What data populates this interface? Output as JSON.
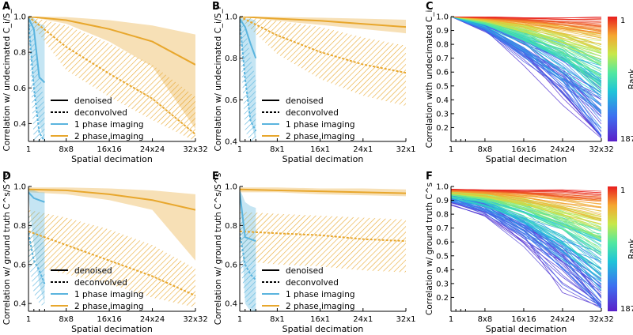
{
  "colors": {
    "blue": "#5ab4de",
    "orange": "#e8a72d"
  },
  "chart_data": [
    {
      "panel": "A",
      "type": "line",
      "ylabel": "Correlation w/ undecimated C_i/S_i",
      "xlabel": "Spatial decimation",
      "xticks": [
        "1",
        "8x8",
        "16x16",
        "24x24",
        "32x32"
      ],
      "yticks": [
        "0.4",
        "0.6",
        "0.8",
        "1.0"
      ],
      "ylim": [
        0.3,
        1.0
      ],
      "legend": [
        "denoised",
        "deconvolved",
        "1 phase imaging",
        "2 phase imaging"
      ],
      "series": [
        {
          "name": "2 phase denoised",
          "x": [
            1,
            8,
            16,
            24,
            32
          ],
          "y": [
            1.0,
            0.98,
            0.93,
            0.86,
            0.73
          ],
          "lo": [
            1.0,
            0.96,
            0.86,
            0.72,
            0.37
          ],
          "hi": [
            1.0,
            0.997,
            0.98,
            0.95,
            0.9
          ]
        },
        {
          "name": "2 phase deconvolved",
          "x": [
            1,
            8,
            16,
            24,
            32
          ],
          "y": [
            1.0,
            0.83,
            0.68,
            0.54,
            0.34
          ],
          "lo": [
            0.98,
            0.7,
            0.55,
            0.42,
            0.3
          ],
          "hi": [
            1.0,
            0.95,
            0.85,
            0.73,
            0.55
          ]
        },
        {
          "name": "1 phase denoised",
          "x": [
            1,
            2,
            3,
            4
          ],
          "y": [
            0.99,
            0.93,
            0.66,
            0.63
          ],
          "lo": [
            0.98,
            0.6,
            0.4,
            0.3
          ],
          "hi": [
            1.0,
            0.99,
            0.96,
            0.95
          ]
        },
        {
          "name": "1 phase deconvolved",
          "x": [
            1,
            2,
            3,
            4
          ],
          "y": [
            0.98,
            0.6,
            0.35,
            0.3
          ],
          "lo": [
            0.9,
            0.3,
            0.3,
            0.3
          ],
          "hi": [
            1.0,
            0.95,
            0.7,
            0.5
          ]
        }
      ]
    },
    {
      "panel": "B",
      "type": "line",
      "ylabel": "Correlation w/ undecimated C_i/S_i",
      "xlabel": "Spatial decimation",
      "xticks": [
        "1",
        "8x1",
        "16x1",
        "24x1",
        "32x1"
      ],
      "yticks": [
        "0.4",
        "0.6",
        "0.8",
        "1.0"
      ],
      "ylim": [
        0.4,
        1.0
      ],
      "legend": [
        "denoised",
        "deconvolved",
        "1 phase imaging",
        "2 phase imaging"
      ],
      "series": [
        {
          "name": "2 phase denoised",
          "x": [
            1,
            8,
            16,
            24,
            32
          ],
          "y": [
            1.0,
            0.99,
            0.98,
            0.965,
            0.95
          ],
          "lo": [
            1.0,
            0.98,
            0.96,
            0.94,
            0.92
          ],
          "hi": [
            1.0,
            0.998,
            0.995,
            0.99,
            0.985
          ]
        },
        {
          "name": "2 phase deconvolved",
          "x": [
            1,
            8,
            16,
            24,
            32
          ],
          "y": [
            1.0,
            0.91,
            0.83,
            0.77,
            0.73
          ],
          "lo": [
            0.99,
            0.82,
            0.7,
            0.62,
            0.57
          ],
          "hi": [
            1.0,
            0.98,
            0.95,
            0.9,
            0.86
          ]
        },
        {
          "name": "1 phase denoised",
          "x": [
            1,
            2,
            3,
            4
          ],
          "y": [
            0.99,
            0.95,
            0.87,
            0.8
          ],
          "lo": [
            0.97,
            0.7,
            0.5,
            0.4
          ],
          "hi": [
            1.0,
            0.99,
            0.99,
            0.98
          ]
        },
        {
          "name": "1 phase deconvolved",
          "x": [
            1,
            2,
            3,
            4
          ],
          "y": [
            0.98,
            0.7,
            0.5,
            0.45
          ],
          "lo": [
            0.9,
            0.45,
            0.4,
            0.4
          ],
          "hi": [
            1.0,
            0.95,
            0.8,
            0.7
          ]
        }
      ]
    },
    {
      "panel": "C",
      "type": "line",
      "ylabel": "Correlation with undecimated C_i",
      "xlabel": "Spatial decimation",
      "xticks": [
        "1",
        "8x8",
        "16x16",
        "24x24",
        "32x32"
      ],
      "yticks": [
        "0.2",
        "0.3",
        "0.4",
        "0.5",
        "0.6",
        "0.7",
        "0.8",
        "0.9",
        "1.0"
      ],
      "ylim": [
        0.1,
        1.0
      ],
      "colorbar": {
        "label": "Rank",
        "top": "1",
        "bottom": "187"
      },
      "n_lines": 187
    },
    {
      "panel": "D",
      "type": "line",
      "ylabel": "Correlation w/ ground truth C^s/S^s",
      "xlabel": "Spatial decimation",
      "xticks": [
        "1",
        "8x8",
        "16x16",
        "24x24",
        "32x32"
      ],
      "yticks": [
        "0.4",
        "0.6",
        "0.8",
        "1.0"
      ],
      "ylim": [
        0.36,
        1.0
      ],
      "legend": [
        "denoised",
        "deconvolved",
        "1 phase imaging",
        "2 phase imaging"
      ],
      "series": [
        {
          "name": "2 phase denoised",
          "x": [
            1,
            8,
            16,
            24,
            32
          ],
          "y": [
            0.985,
            0.98,
            0.96,
            0.93,
            0.88
          ],
          "lo": [
            0.97,
            0.96,
            0.93,
            0.88,
            0.62
          ],
          "hi": [
            0.995,
            0.995,
            0.99,
            0.98,
            0.96
          ]
        },
        {
          "name": "2 phase deconvolved",
          "x": [
            1,
            8,
            16,
            24,
            32
          ],
          "y": [
            0.77,
            0.7,
            0.62,
            0.54,
            0.44
          ],
          "lo": [
            0.6,
            0.55,
            0.5,
            0.43,
            0.38
          ],
          "hi": [
            0.88,
            0.84,
            0.78,
            0.7,
            0.58
          ]
        },
        {
          "name": "1 phase denoised",
          "x": [
            1,
            2,
            3,
            4
          ],
          "y": [
            0.97,
            0.94,
            0.93,
            0.92
          ],
          "lo": [
            0.95,
            0.7,
            0.5,
            0.4
          ],
          "hi": [
            0.99,
            0.98,
            0.97,
            0.97
          ]
        },
        {
          "name": "1 phase deconvolved",
          "x": [
            1,
            2,
            3,
            4
          ],
          "y": [
            0.76,
            0.62,
            0.57,
            0.5
          ],
          "lo": [
            0.62,
            0.45,
            0.4,
            0.38
          ],
          "hi": [
            0.86,
            0.8,
            0.75,
            0.7
          ]
        }
      ]
    },
    {
      "panel": "E",
      "type": "line",
      "ylabel": "Correlation w/ ground truth C^s/S^s",
      "xlabel": "Spatial decimation",
      "xticks": [
        "1",
        "8x1",
        "16x1",
        "24x1",
        "32x1"
      ],
      "yticks": [
        "0.4",
        "0.6",
        "0.8",
        "1.0"
      ],
      "ylim": [
        0.36,
        1.0
      ],
      "legend": [
        "denoised",
        "deconvolved",
        "1 phase imaging",
        "2 phase imaging"
      ],
      "series": [
        {
          "name": "2 phase denoised",
          "x": [
            1,
            8,
            16,
            24,
            32
          ],
          "y": [
            0.985,
            0.98,
            0.975,
            0.97,
            0.965
          ],
          "lo": [
            0.97,
            0.97,
            0.96,
            0.955,
            0.95
          ],
          "hi": [
            0.995,
            0.995,
            0.99,
            0.99,
            0.985
          ]
        },
        {
          "name": "2 phase deconvolved",
          "x": [
            1,
            8,
            16,
            24,
            32
          ],
          "y": [
            0.77,
            0.76,
            0.75,
            0.73,
            0.72
          ],
          "lo": [
            0.62,
            0.6,
            0.59,
            0.57,
            0.56
          ],
          "hi": [
            0.87,
            0.86,
            0.85,
            0.84,
            0.83
          ]
        },
        {
          "name": "1 phase denoised",
          "x": [
            1,
            2,
            3,
            4
          ],
          "y": [
            0.97,
            0.74,
            0.73,
            0.72
          ],
          "lo": [
            0.95,
            0.4,
            0.36,
            0.36
          ],
          "hi": [
            0.99,
            0.92,
            0.9,
            0.89
          ]
        },
        {
          "name": "1 phase deconvolved",
          "x": [
            1,
            2,
            3,
            4
          ],
          "y": [
            0.76,
            0.6,
            0.55,
            0.52
          ],
          "lo": [
            0.62,
            0.42,
            0.38,
            0.36
          ],
          "hi": [
            0.86,
            0.78,
            0.72,
            0.68
          ]
        }
      ]
    },
    {
      "panel": "F",
      "type": "line",
      "ylabel": "Correlation w/ ground truth C^s",
      "xlabel": "Spatial decimation",
      "xticks": [
        "1",
        "8x8",
        "16x16",
        "24x24",
        "32x32"
      ],
      "yticks": [
        "0.2",
        "0.3",
        "0.4",
        "0.5",
        "0.6",
        "0.7",
        "0.8",
        "0.9",
        "1.0"
      ],
      "ylim": [
        0.1,
        1.0
      ],
      "colorbar": {
        "label": "Rank",
        "top": "1",
        "bottom": "187"
      },
      "n_lines": 187
    }
  ]
}
